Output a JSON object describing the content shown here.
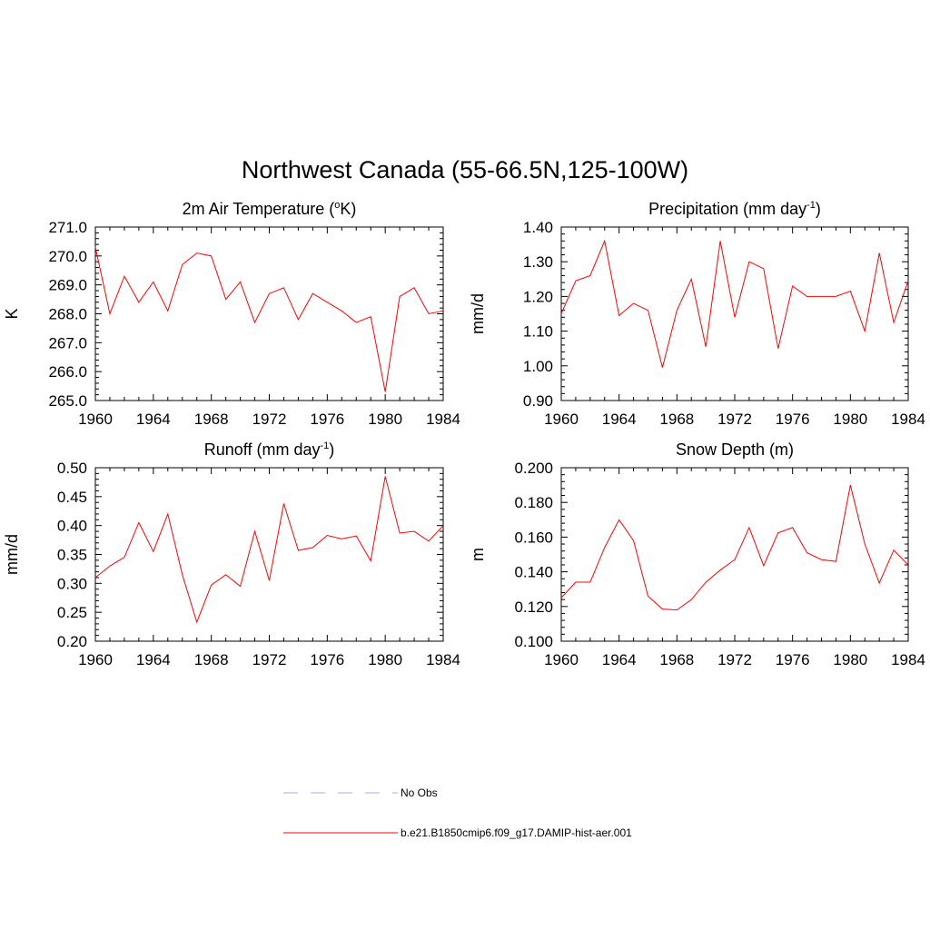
{
  "title": "Northwest Canada (55-66.5N,125-100W)",
  "colors": {
    "model": "#ff0000",
    "obs": "#aaaaff"
  },
  "legend": [
    {
      "label": "No Obs",
      "style": "dashed",
      "color": "#aaaaff"
    },
    {
      "label": "b.e21.B1850cmip6.f09_g17.DAMIP-hist-aer.001",
      "style": "solid",
      "color": "#ff0000"
    }
  ],
  "chart_data": [
    {
      "type": "line",
      "title": "2m Air Temperature (",
      "title_sup": "o",
      "title_tail": "K)",
      "xlabel": "",
      "ylabel": "K",
      "xlim": [
        1960,
        1984
      ],
      "ylim": [
        265.0,
        271.0
      ],
      "xticks": [
        1960,
        1964,
        1968,
        1972,
        1976,
        1980,
        1984
      ],
      "yticks": [
        "265.0",
        "266.0",
        "267.0",
        "268.0",
        "269.0",
        "270.0",
        "271.0"
      ],
      "x": [
        1960,
        1961,
        1962,
        1963,
        1964,
        1965,
        1966,
        1967,
        1968,
        1969,
        1970,
        1971,
        1972,
        1973,
        1974,
        1975,
        1976,
        1977,
        1978,
        1979,
        1980,
        1981,
        1982,
        1983,
        1984
      ],
      "series": [
        {
          "values": [
            270.3,
            268.0,
            269.3,
            268.4,
            269.1,
            268.1,
            269.7,
            270.1,
            270.0,
            268.5,
            269.1,
            267.7,
            268.7,
            268.9,
            267.8,
            268.7,
            268.4,
            268.1,
            267.7,
            267.9,
            265.3,
            268.6,
            268.9,
            268.0,
            268.1
          ]
        }
      ]
    },
    {
      "type": "line",
      "title": "Precipitation (mm day",
      "title_sup": "-1",
      "title_tail": ")",
      "xlabel": "",
      "ylabel": "mm/d",
      "xlim": [
        1960,
        1984
      ],
      "ylim": [
        0.9,
        1.4
      ],
      "xticks": [
        1960,
        1964,
        1968,
        1972,
        1976,
        1980,
        1984
      ],
      "yticks": [
        "0.90",
        "1.00",
        "1.10",
        "1.20",
        "1.30",
        "1.40"
      ],
      "x": [
        1960,
        1961,
        1962,
        1963,
        1964,
        1965,
        1966,
        1967,
        1968,
        1969,
        1970,
        1971,
        1972,
        1973,
        1974,
        1975,
        1976,
        1977,
        1978,
        1979,
        1980,
        1981,
        1982,
        1983,
        1984
      ],
      "series": [
        {
          "values": [
            1.15,
            1.245,
            1.26,
            1.36,
            1.145,
            1.18,
            1.16,
            0.995,
            1.16,
            1.25,
            1.055,
            1.36,
            1.14,
            1.3,
            1.28,
            1.05,
            1.23,
            1.2,
            1.2,
            1.2,
            1.215,
            1.1,
            1.325,
            1.125,
            1.245
          ]
        }
      ]
    },
    {
      "type": "line",
      "title": "Runoff (mm day",
      "title_sup": "-1",
      "title_tail": ")",
      "xlabel": "",
      "ylabel": "mm/d",
      "xlim": [
        1960,
        1984
      ],
      "ylim": [
        0.2,
        0.5
      ],
      "xticks": [
        1960,
        1964,
        1968,
        1972,
        1976,
        1980,
        1984
      ],
      "yticks": [
        "0.20",
        "0.25",
        "0.30",
        "0.35",
        "0.40",
        "0.45",
        "0.50"
      ],
      "x": [
        1960,
        1961,
        1962,
        1963,
        1964,
        1965,
        1966,
        1967,
        1968,
        1969,
        1970,
        1971,
        1972,
        1973,
        1974,
        1975,
        1976,
        1977,
        1978,
        1979,
        1980,
        1981,
        1982,
        1983,
        1984
      ],
      "series": [
        {
          "values": [
            0.31,
            0.33,
            0.345,
            0.405,
            0.355,
            0.42,
            0.315,
            0.233,
            0.297,
            0.315,
            0.295,
            0.39,
            0.305,
            0.438,
            0.357,
            0.362,
            0.383,
            0.377,
            0.382,
            0.339,
            0.485,
            0.387,
            0.39,
            0.373,
            0.4
          ]
        }
      ]
    },
    {
      "type": "line",
      "title": "Snow Depth (m)",
      "title_sup": "",
      "title_tail": "",
      "xlabel": "",
      "ylabel": "m",
      "xlim": [
        1960,
        1984
      ],
      "ylim": [
        0.1,
        0.2
      ],
      "xticks": [
        1960,
        1964,
        1968,
        1972,
        1976,
        1980,
        1984
      ],
      "yticks": [
        "0.100",
        "0.120",
        "0.140",
        "0.160",
        "0.180",
        "0.200"
      ],
      "x": [
        1960,
        1961,
        1962,
        1963,
        1964,
        1965,
        1966,
        1967,
        1968,
        1969,
        1970,
        1971,
        1972,
        1973,
        1974,
        1975,
        1976,
        1977,
        1978,
        1979,
        1980,
        1981,
        1982,
        1983,
        1984
      ],
      "series": [
        {
          "values": [
            0.125,
            0.134,
            0.134,
            0.154,
            0.17,
            0.158,
            0.126,
            0.1185,
            0.118,
            0.124,
            0.134,
            0.141,
            0.147,
            0.1655,
            0.1435,
            0.1625,
            0.1655,
            0.151,
            0.147,
            0.146,
            0.19,
            0.156,
            0.1335,
            0.1525,
            0.144
          ]
        }
      ]
    }
  ]
}
